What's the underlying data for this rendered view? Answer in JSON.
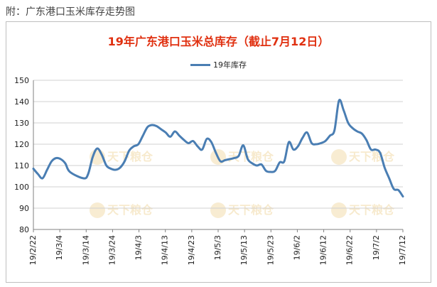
{
  "caption": "附：广东港口玉米库存走势图",
  "colors": {
    "title": "#e03010",
    "series": "#4a7eb3",
    "grid": "#d0d0d0",
    "axis": "#808080"
  },
  "watermark_text": "天下粮仓",
  "chart_data": {
    "type": "line",
    "title": "19年广东港口玉米总库存（截止7月12日）",
    "xlabel": "",
    "ylabel": "",
    "ylim": [
      80,
      150
    ],
    "yticks": [
      80,
      90,
      100,
      110,
      120,
      130,
      140,
      150
    ],
    "grid": true,
    "legend_position": "top",
    "categories": [
      "19/2/22",
      "19/3/4",
      "19/3/14",
      "19/3/24",
      "19/4/3",
      "19/4/13",
      "19/4/23",
      "19/5/3",
      "19/5/13",
      "19/5/23",
      "19/6/2",
      "19/6/12",
      "19/6/22",
      "19/7/2",
      "19/7/12"
    ],
    "series": [
      {
        "name": "19年库存",
        "points": [
          [
            0,
            108.5
          ],
          [
            1,
            106
          ],
          [
            2,
            104
          ],
          [
            3,
            108
          ],
          [
            4,
            112
          ],
          [
            5,
            113.5
          ],
          [
            6,
            113
          ],
          [
            7,
            111
          ],
          [
            8,
            107
          ],
          [
            11,
            104
          ],
          [
            12,
            106
          ],
          [
            13,
            114
          ],
          [
            14,
            118
          ],
          [
            15,
            115
          ],
          [
            16,
            110
          ],
          [
            17,
            108.5
          ],
          [
            18,
            108
          ],
          [
            19,
            109
          ],
          [
            20,
            112
          ],
          [
            21,
            117
          ],
          [
            22,
            119
          ],
          [
            23,
            120
          ],
          [
            24,
            124
          ],
          [
            25,
            128
          ],
          [
            26,
            129
          ],
          [
            27,
            128.5
          ],
          [
            28,
            127
          ],
          [
            29,
            125.5
          ],
          [
            30,
            123.5
          ],
          [
            31,
            126
          ],
          [
            32,
            124
          ],
          [
            33,
            122
          ],
          [
            34,
            120.5
          ],
          [
            35,
            121.5
          ],
          [
            36,
            119
          ],
          [
            37,
            117.5
          ],
          [
            38,
            122.5
          ],
          [
            39,
            121
          ],
          [
            40,
            116
          ],
          [
            41,
            112
          ],
          [
            42,
            112.5
          ],
          [
            43,
            113
          ],
          [
            44,
            113.5
          ],
          [
            45,
            114.5
          ],
          [
            46,
            119.5
          ],
          [
            47,
            113
          ],
          [
            48,
            111
          ],
          [
            49,
            110
          ],
          [
            50,
            110.5
          ],
          [
            51,
            107.5
          ],
          [
            52,
            107
          ],
          [
            53,
            107.5
          ],
          [
            54,
            111.5
          ],
          [
            55,
            112
          ],
          [
            56,
            121
          ],
          [
            57,
            117.5
          ],
          [
            58,
            119
          ],
          [
            59,
            123
          ],
          [
            60,
            125.5
          ],
          [
            61,
            120.5
          ],
          [
            62,
            120
          ],
          [
            63,
            120.5
          ],
          [
            64,
            121.5
          ],
          [
            65,
            124
          ],
          [
            66,
            126.5
          ],
          [
            67,
            140.5
          ],
          [
            68,
            136
          ],
          [
            69,
            130
          ],
          [
            70,
            127.5
          ],
          [
            71,
            126
          ],
          [
            72,
            125
          ],
          [
            73,
            122
          ],
          [
            74,
            117.5
          ],
          [
            75,
            117.5
          ],
          [
            76,
            116
          ],
          [
            77,
            109
          ],
          [
            78,
            104
          ],
          [
            79,
            99
          ],
          [
            80,
            98.5
          ],
          [
            81,
            95.5
          ]
        ]
      }
    ]
  }
}
